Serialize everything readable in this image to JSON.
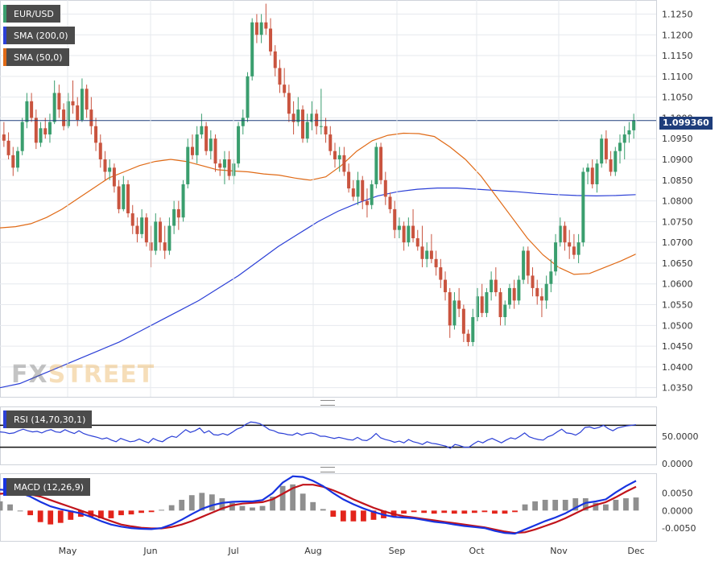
{
  "colors": {
    "bull": "#3a9e6e",
    "bear": "#c9543f",
    "sma200": "#2b3fd6",
    "sma50": "#e06a16",
    "rsi": "#2b3fd6",
    "macd": "#1733e0",
    "signal": "#c1141b",
    "hist_pos": "#8f8f8f",
    "hist_neg": "#e3241b",
    "price_line": "#1e3d7b"
  },
  "badges": {
    "symbol": "EUR/USD",
    "sma200": "SMA (200,0)",
    "sma50": "SMA (50,0)",
    "rsi": "RSI (14,70,30,1)",
    "macd": "MACD (12,26,9)"
  },
  "price_tag": "1.099360",
  "logo": {
    "fx": "FX",
    "street": "STREET"
  },
  "chart_data": {
    "type": "candlestick",
    "title": "EUR/USD",
    "x_months": [
      "May",
      "Jun",
      "Jul",
      "Aug",
      "Sep",
      "Oct",
      "Nov",
      "Dec"
    ],
    "price": {
      "ylim": [
        1.033,
        1.128
      ],
      "ticks": [
        "1.0350",
        "1.0400",
        "1.0450",
        "1.0500",
        "1.0550",
        "1.0600",
        "1.0650",
        "1.0700",
        "1.0750",
        "1.0800",
        "1.0850",
        "1.0900",
        "1.0950",
        "1.1000",
        "1.1050",
        "1.1100",
        "1.1150",
        "1.1200",
        "1.1250"
      ],
      "last": 1.09936,
      "candles": [
        [
          1.096,
          1.099,
          1.093,
          1.0945
        ],
        [
          1.0945,
          1.0965,
          1.09,
          1.091
        ],
        [
          1.091,
          1.093,
          1.086,
          1.088
        ],
        [
          1.088,
          1.093,
          1.087,
          1.092
        ],
        [
          1.092,
          1.1,
          1.091,
          1.099
        ],
        [
          1.099,
          1.106,
          1.0975,
          1.104
        ],
        [
          1.104,
          1.106,
          1.099,
          1.1
        ],
        [
          1.1,
          1.102,
          1.0925,
          1.094
        ],
        [
          1.094,
          1.099,
          1.093,
          1.0975
        ],
        [
          1.0975,
          1.1,
          1.095,
          1.096
        ],
        [
          1.096,
          1.101,
          1.094,
          1.099
        ],
        [
          1.099,
          1.109,
          1.0985,
          1.106
        ],
        [
          1.106,
          1.108,
          1.1,
          1.102
        ],
        [
          1.102,
          1.1035,
          1.097,
          1.098
        ],
        [
          1.098,
          1.106,
          1.0975,
          1.104
        ],
        [
          1.104,
          1.109,
          1.101,
          1.103
        ],
        [
          1.103,
          1.105,
          1.098,
          1.0995
        ],
        [
          1.0995,
          1.1095,
          1.099,
          1.107
        ],
        [
          1.107,
          1.108,
          1.1,
          1.102
        ],
        [
          1.102,
          1.105,
          1.096,
          1.098
        ],
        [
          1.098,
          1.1,
          1.092,
          1.094
        ],
        [
          1.094,
          1.096,
          1.088,
          1.09
        ],
        [
          1.09,
          1.092,
          1.085,
          1.087
        ],
        [
          1.087,
          1.09,
          1.085,
          1.088
        ],
        [
          1.088,
          1.089,
          1.082,
          1.0835
        ],
        [
          1.0835,
          1.085,
          1.077,
          1.078
        ],
        [
          1.078,
          1.086,
          1.0775,
          1.084
        ],
        [
          1.084,
          1.085,
          1.076,
          1.077
        ],
        [
          1.077,
          1.079,
          1.072,
          1.074
        ],
        [
          1.074,
          1.076,
          1.07,
          1.072
        ],
        [
          1.072,
          1.078,
          1.071,
          1.076
        ],
        [
          1.076,
          1.077,
          1.069,
          1.07
        ],
        [
          1.07,
          1.074,
          1.064,
          1.068
        ],
        [
          1.068,
          1.077,
          1.067,
          1.075
        ],
        [
          1.075,
          1.076,
          1.068,
          1.07
        ],
        [
          1.07,
          1.074,
          1.066,
          1.068
        ],
        [
          1.068,
          1.076,
          1.067,
          1.074
        ],
        [
          1.074,
          1.08,
          1.072,
          1.078
        ],
        [
          1.078,
          1.08,
          1.073,
          1.076
        ],
        [
          1.076,
          1.085,
          1.075,
          1.084
        ],
        [
          1.084,
          1.095,
          1.083,
          1.093
        ],
        [
          1.093,
          1.096,
          1.09,
          1.091
        ],
        [
          1.091,
          1.098,
          1.089,
          1.096
        ],
        [
          1.096,
          1.101,
          1.095,
          1.098
        ],
        [
          1.098,
          1.099,
          1.091,
          1.092
        ],
        [
          1.092,
          1.097,
          1.09,
          1.095
        ],
        [
          1.095,
          1.096,
          1.087,
          1.089
        ],
        [
          1.089,
          1.09,
          1.086,
          1.088
        ],
        [
          1.088,
          1.092,
          1.084,
          1.09
        ],
        [
          1.09,
          1.092,
          1.085,
          1.086
        ],
        [
          1.086,
          1.09,
          1.084,
          1.089
        ],
        [
          1.089,
          1.099,
          1.088,
          1.098
        ],
        [
          1.098,
          1.102,
          1.096,
          1.1
        ],
        [
          1.1,
          1.111,
          1.099,
          1.11
        ],
        [
          1.11,
          1.124,
          1.109,
          1.123
        ],
        [
          1.123,
          1.125,
          1.118,
          1.12
        ],
        [
          1.12,
          1.125,
          1.118,
          1.123
        ],
        [
          1.123,
          1.1275,
          1.12,
          1.1215
        ],
        [
          1.1215,
          1.124,
          1.115,
          1.116
        ],
        [
          1.116,
          1.1175,
          1.11,
          1.112
        ],
        [
          1.112,
          1.114,
          1.106,
          1.108
        ],
        [
          1.108,
          1.112,
          1.105,
          1.106
        ],
        [
          1.106,
          1.108,
          1.099,
          1.101
        ],
        [
          1.101,
          1.104,
          1.096,
          1.099
        ],
        [
          1.099,
          1.105,
          1.098,
          1.102
        ],
        [
          1.102,
          1.103,
          1.094,
          1.095
        ],
        [
          1.095,
          1.101,
          1.094,
          1.099
        ],
        [
          1.099,
          1.104,
          1.097,
          1.101
        ],
        [
          1.101,
          1.102,
          1.096,
          1.098
        ],
        [
          1.098,
          1.107,
          1.096,
          1.098
        ],
        [
          1.098,
          1.1,
          1.094,
          1.096
        ],
        [
          1.096,
          1.098,
          1.091,
          1.092
        ],
        [
          1.092,
          1.094,
          1.088,
          1.09
        ],
        [
          1.09,
          1.093,
          1.087,
          1.091
        ],
        [
          1.091,
          1.093,
          1.086,
          1.087
        ],
        [
          1.087,
          1.089,
          1.082,
          1.083
        ],
        [
          1.083,
          1.085,
          1.08,
          1.081
        ],
        [
          1.081,
          1.087,
          1.079,
          1.085
        ],
        [
          1.085,
          1.086,
          1.078,
          1.08
        ],
        [
          1.08,
          1.083,
          1.076,
          1.079
        ],
        [
          1.079,
          1.085,
          1.078,
          1.084
        ],
        [
          1.084,
          1.094,
          1.083,
          1.093
        ],
        [
          1.093,
          1.094,
          1.084,
          1.085
        ],
        [
          1.085,
          1.087,
          1.079,
          1.081
        ],
        [
          1.081,
          1.082,
          1.077,
          1.078
        ],
        [
          1.078,
          1.08,
          1.071,
          1.073
        ],
        [
          1.073,
          1.076,
          1.071,
          1.074
        ],
        [
          1.074,
          1.075,
          1.068,
          1.07
        ],
        [
          1.07,
          1.076,
          1.069,
          1.074
        ],
        [
          1.074,
          1.078,
          1.07,
          1.071
        ],
        [
          1.071,
          1.073,
          1.068,
          1.069
        ],
        [
          1.069,
          1.074,
          1.064,
          1.066
        ],
        [
          1.066,
          1.07,
          1.064,
          1.068
        ],
        [
          1.068,
          1.072,
          1.065,
          1.066
        ],
        [
          1.066,
          1.068,
          1.062,
          1.064
        ],
        [
          1.064,
          1.066,
          1.059,
          1.061
        ],
        [
          1.061,
          1.063,
          1.056,
          1.058
        ],
        [
          1.058,
          1.059,
          1.047,
          1.05
        ],
        [
          1.05,
          1.058,
          1.049,
          1.056
        ],
        [
          1.056,
          1.059,
          1.052,
          1.054
        ],
        [
          1.054,
          1.055,
          1.046,
          1.048
        ],
        [
          1.048,
          1.049,
          1.045,
          1.046
        ],
        [
          1.046,
          1.054,
          1.045,
          1.052
        ],
        [
          1.052,
          1.059,
          1.051,
          1.057
        ],
        [
          1.057,
          1.06,
          1.052,
          1.053
        ],
        [
          1.053,
          1.059,
          1.052,
          1.058
        ],
        [
          1.058,
          1.063,
          1.056,
          1.061
        ],
        [
          1.061,
          1.064,
          1.057,
          1.058
        ],
        [
          1.058,
          1.059,
          1.05,
          1.052
        ],
        [
          1.052,
          1.056,
          1.05,
          1.055
        ],
        [
          1.055,
          1.06,
          1.054,
          1.059
        ],
        [
          1.059,
          1.061,
          1.054,
          1.056
        ],
        [
          1.056,
          1.062,
          1.055,
          1.061
        ],
        [
          1.061,
          1.069,
          1.06,
          1.068
        ],
        [
          1.068,
          1.069,
          1.06,
          1.062
        ],
        [
          1.062,
          1.064,
          1.057,
          1.059
        ],
        [
          1.059,
          1.061,
          1.055,
          1.057
        ],
        [
          1.057,
          1.059,
          1.052,
          1.056
        ],
        [
          1.056,
          1.062,
          1.054,
          1.06
        ],
        [
          1.06,
          1.066,
          1.058,
          1.063
        ],
        [
          1.063,
          1.072,
          1.062,
          1.07
        ],
        [
          1.07,
          1.076,
          1.069,
          1.074
        ],
        [
          1.074,
          1.075,
          1.068,
          1.07
        ],
        [
          1.07,
          1.073,
          1.066,
          1.069
        ],
        [
          1.069,
          1.072,
          1.066,
          1.067
        ],
        [
          1.067,
          1.072,
          1.065,
          1.07
        ],
        [
          1.07,
          1.088,
          1.069,
          1.087
        ],
        [
          1.087,
          1.089,
          1.084,
          1.088
        ],
        [
          1.088,
          1.09,
          1.083,
          1.084
        ],
        [
          1.084,
          1.09,
          1.082,
          1.089
        ],
        [
          1.089,
          1.096,
          1.088,
          1.095
        ],
        [
          1.095,
          1.097,
          1.089,
          1.09
        ],
        [
          1.09,
          1.092,
          1.086,
          1.087
        ],
        [
          1.087,
          1.093,
          1.086,
          1.092
        ],
        [
          1.092,
          1.096,
          1.089,
          1.094
        ],
        [
          1.094,
          1.098,
          1.09,
          1.096
        ],
        [
          1.096,
          1.099,
          1.094,
          1.097
        ],
        [
          1.097,
          1.101,
          1.095,
          1.0994
        ]
      ],
      "sma50": [
        1.0735,
        1.0738,
        1.0745,
        1.076,
        1.078,
        1.0805,
        1.083,
        1.0855,
        1.087,
        1.0885,
        1.0895,
        1.09,
        1.0895,
        1.0885,
        1.0875,
        1.0872,
        1.087,
        1.0865,
        1.0862,
        1.0855,
        1.085,
        1.0858,
        1.0885,
        1.092,
        1.0945,
        1.0958,
        1.0963,
        1.0962,
        1.0955,
        1.093,
        1.09,
        1.086,
        1.081,
        1.076,
        1.071,
        1.067,
        1.064,
        1.0623,
        1.0625,
        1.064,
        1.0655,
        1.0672
      ],
      "sma200": [
        1.035,
        1.036,
        1.038,
        1.04,
        1.042,
        1.044,
        1.046,
        1.0485,
        1.051,
        1.0535,
        1.056,
        1.059,
        1.062,
        1.0655,
        1.069,
        1.072,
        1.075,
        1.0775,
        1.0795,
        1.0812,
        1.0822,
        1.0828,
        1.0831,
        1.0831,
        1.0828,
        1.0825,
        1.0822,
        1.0818,
        1.0815,
        1.0813,
        1.0812,
        1.0813,
        1.0815
      ],
      "sma50_mode": "y=price"
    },
    "rsi": {
      "labels": [
        "50.0000",
        "0.0000"
      ],
      "levels": [
        70,
        30
      ],
      "series": [
        58,
        57,
        55,
        56,
        60,
        63,
        60,
        58,
        59,
        56,
        60,
        62,
        58,
        57,
        62,
        58,
        55,
        60,
        55,
        52,
        50,
        48,
        45,
        47,
        43,
        40,
        46,
        43,
        40,
        41,
        45,
        41,
        38,
        46,
        42,
        40,
        46,
        50,
        48,
        55,
        62,
        57,
        60,
        65,
        56,
        60,
        53,
        52,
        55,
        52,
        57,
        63,
        66,
        72,
        76,
        75,
        73,
        68,
        62,
        60,
        56,
        55,
        53,
        52,
        56,
        52,
        55,
        56,
        54,
        50,
        50,
        48,
        46,
        48,
        46,
        44,
        43,
        48,
        43,
        42,
        47,
        55,
        47,
        44,
        42,
        39,
        41,
        38,
        44,
        40,
        38,
        35,
        40,
        37,
        36,
        34,
        32,
        28,
        35,
        33,
        30,
        30,
        36,
        41,
        38,
        43,
        46,
        42,
        38,
        43,
        47,
        45,
        50,
        56,
        49,
        46,
        44,
        43,
        49,
        52,
        58,
        63,
        56,
        55,
        52,
        57,
        66,
        67,
        64,
        66,
        70,
        64,
        60,
        65,
        67,
        69,
        70,
        71
      ]
    },
    "macd": {
      "labels": [
        "0.0050",
        "0.0000",
        "-0.0050"
      ],
      "macd_series": [
        0.006,
        0.0058,
        0.005,
        0.004,
        0.0025,
        0.0012,
        0.0004,
        -0.0002,
        -0.0008,
        -0.0018,
        -0.003,
        -0.004,
        -0.0046,
        -0.005,
        -0.0052,
        -0.0053,
        -0.005,
        -0.004,
        -0.0026,
        -0.001,
        0.0005,
        0.0015,
        0.0022,
        0.0025,
        0.0026,
        0.0026,
        0.003,
        0.005,
        0.008,
        0.0098,
        0.0096,
        0.0085,
        0.007,
        0.005,
        0.0032,
        0.0018,
        0.0006,
        -0.0004,
        -0.0012,
        -0.0018,
        -0.002,
        -0.0022,
        -0.0027,
        -0.0032,
        -0.0035,
        -0.004,
        -0.0044,
        -0.0047,
        -0.005,
        -0.0058,
        -0.0064,
        -0.0066,
        -0.0054,
        -0.0042,
        -0.003,
        -0.002,
        -0.0008,
        0.0008,
        0.0022,
        0.0026,
        0.0032,
        0.0052,
        0.007,
        0.0085
      ],
      "signal_series": [
        0.0048,
        0.005,
        0.005,
        0.0046,
        0.004,
        0.003,
        0.002,
        0.001,
        0.0,
        -0.001,
        -0.002,
        -0.003,
        -0.004,
        -0.0045,
        -0.0049,
        -0.0051,
        -0.0051,
        -0.0047,
        -0.004,
        -0.003,
        -0.0018,
        -0.0006,
        0.0006,
        0.0015,
        0.002,
        0.0022,
        0.0024,
        0.0032,
        0.0048,
        0.0064,
        0.0074,
        0.0074,
        0.0068,
        0.0058,
        0.0046,
        0.0032,
        0.002,
        0.0008,
        -0.0002,
        -0.001,
        -0.0016,
        -0.002,
        -0.0024,
        -0.0028,
        -0.0032,
        -0.0036,
        -0.004,
        -0.0044,
        -0.0048,
        -0.0054,
        -0.006,
        -0.0064,
        -0.0062,
        -0.0054,
        -0.0044,
        -0.0034,
        -0.0022,
        -0.0008,
        0.0006,
        0.0016,
        0.0024,
        0.0038,
        0.0054,
        0.0068
      ]
    }
  }
}
